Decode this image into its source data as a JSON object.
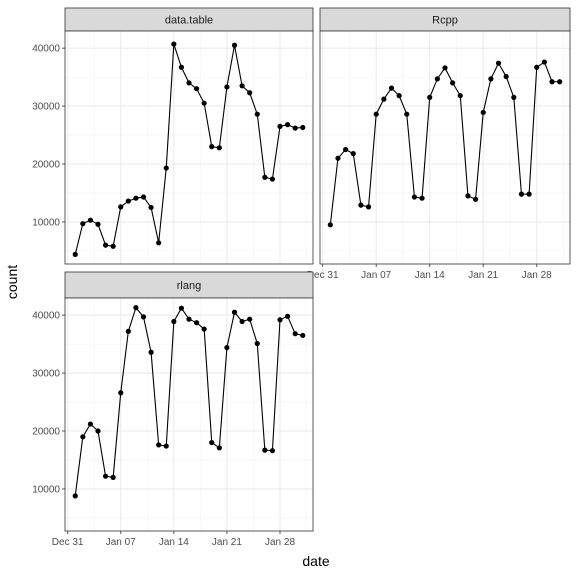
{
  "chart_data": {
    "type": "line",
    "facet_layout": "2x2 grid (3 panels)",
    "xlabel": "date",
    "ylabel": "count",
    "grid": true,
    "x_tick_labels": [
      "Dec 31",
      "Jan 07",
      "Jan 14",
      "Jan 21",
      "Jan 28"
    ],
    "x_tick_dates": [
      "2018-12-31",
      "2019-01-07",
      "2019-01-14",
      "2019-01-21",
      "2019-01-28"
    ],
    "y_tick_labels": [
      "10000",
      "20000",
      "30000",
      "40000"
    ],
    "y_ticks": [
      10000,
      20000,
      30000,
      40000
    ],
    "dates": [
      "2019-01-01",
      "2019-01-02",
      "2019-01-03",
      "2019-01-04",
      "2019-01-05",
      "2019-01-06",
      "2019-01-07",
      "2019-01-08",
      "2019-01-09",
      "2019-01-10",
      "2019-01-11",
      "2019-01-12",
      "2019-01-13",
      "2019-01-14",
      "2019-01-15",
      "2019-01-16",
      "2019-01-17",
      "2019-01-18",
      "2019-01-19",
      "2019-01-20",
      "2019-01-21",
      "2019-01-22",
      "2019-01-23",
      "2019-01-24",
      "2019-01-25",
      "2019-01-26",
      "2019-01-27",
      "2019-01-28",
      "2019-01-29",
      "2019-01-30",
      "2019-01-31"
    ],
    "panels": [
      {
        "name": "data.table",
        "values": [
          4400,
          9700,
          10300,
          9600,
          6000,
          5800,
          12600,
          13600,
          14100,
          14300,
          12500,
          6400,
          19300,
          40700,
          36700,
          34000,
          33000,
          30500,
          23000,
          22800,
          33300,
          40500,
          33500,
          32300,
          28600,
          17700,
          17400,
          26500,
          26800,
          26200,
          26300
        ]
      },
      {
        "name": "Rcpp",
        "values": [
          9500,
          21000,
          22500,
          21800,
          12900,
          12600,
          28600,
          31200,
          33100,
          31800,
          28600,
          14300,
          14100,
          31500,
          34700,
          36600,
          34000,
          31800,
          14500,
          13900,
          28900,
          34700,
          37400,
          35100,
          31500,
          14800,
          14800,
          36700,
          37600,
          34200,
          34200
        ]
      },
      {
        "name": "rlang",
        "values": [
          8800,
          19000,
          21200,
          20000,
          12200,
          12000,
          26600,
          37200,
          41300,
          39700,
          33600,
          17600,
          17400,
          38900,
          41200,
          39300,
          38700,
          37600,
          18000,
          17100,
          34400,
          40500,
          38900,
          39300,
          35100,
          16700,
          16600,
          39200,
          39800,
          36800,
          36500
        ]
      }
    ]
  }
}
